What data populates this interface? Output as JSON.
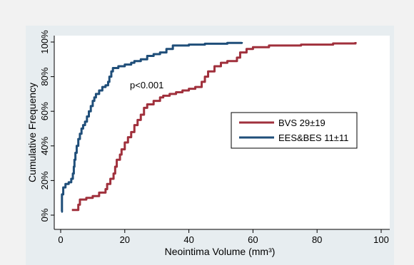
{
  "chart_data": {
    "type": "line",
    "title": "",
    "xlabel": "Neointima Volume (mm³)",
    "ylabel": "Cumulative Frequency",
    "xlim": [
      0,
      100
    ],
    "ylim": [
      0,
      100
    ],
    "x_ticks": [
      0,
      20,
      40,
      60,
      80,
      100
    ],
    "y_ticks": [
      0,
      20,
      40,
      60,
      80,
      100
    ],
    "x_tick_labels": [
      "0",
      "20",
      "40",
      "60",
      "80",
      "100"
    ],
    "y_tick_labels": [
      "0%",
      "20%",
      "40%",
      "60%",
      "80%",
      "100%"
    ],
    "grid": false,
    "legend_position": "right",
    "annotation": "p<0.001",
    "series": [
      {
        "name": "BVS 29±19",
        "color": "#a0303c",
        "x": [
          3.5,
          5.5,
          6,
          8,
          10,
          12,
          14,
          14.5,
          15.5,
          16.5,
          17,
          17.5,
          18.5,
          19,
          20,
          21,
          22,
          23,
          24,
          25,
          26,
          27,
          29,
          31,
          32,
          34,
          36,
          38,
          40,
          42,
          44,
          45,
          46,
          48,
          50,
          52,
          55,
          56,
          58,
          60,
          65,
          75,
          85,
          92
        ],
        "y": [
          3,
          6,
          9,
          10,
          11,
          13,
          15,
          18,
          21,
          24,
          28,
          32,
          35,
          38,
          42,
          45,
          48,
          52,
          55,
          58,
          62,
          64,
          66,
          68,
          69,
          70,
          71,
          72,
          73,
          74,
          77,
          80,
          83,
          86,
          88,
          89,
          91,
          94,
          96,
          97,
          98,
          98.5,
          99.2,
          100
        ],
        "mode": "step"
      },
      {
        "name": "EES&BES 11±11",
        "color": "#1f4e79",
        "x": [
          0.2,
          0.4,
          0.8,
          1.5,
          2.5,
          3.3,
          3.8,
          4.1,
          4.3,
          4.6,
          5,
          5.5,
          6,
          6.5,
          7,
          7.6,
          8.2,
          8.8,
          9.4,
          10,
          10.5,
          11,
          12,
          13,
          14,
          14.8,
          15.2,
          15.8,
          16.3,
          18,
          20,
          22,
          23,
          25,
          27,
          29,
          31,
          33,
          35,
          40,
          45,
          52,
          56.5
        ],
        "y": [
          2,
          12,
          16,
          18,
          19,
          21,
          24,
          28,
          32,
          36,
          40,
          44,
          47,
          50,
          52,
          54,
          57,
          60,
          63,
          66,
          68,
          70,
          72,
          74,
          75,
          77,
          80,
          83,
          85,
          86,
          87,
          88,
          89,
          90,
          92,
          93,
          94,
          96,
          98,
          98.5,
          99,
          99.5,
          100
        ],
        "mode": "step"
      }
    ]
  }
}
